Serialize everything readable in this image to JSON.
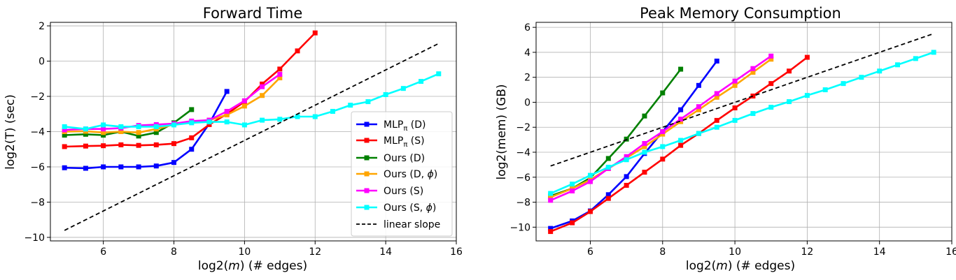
{
  "chart_data": [
    {
      "type": "line",
      "title": "Forward Time",
      "xlabel": "log2(m) (# edges)",
      "xlabel_parts": [
        "log2(",
        "m",
        ") (# edges)"
      ],
      "ylabel": "log2(T) (sec)",
      "xlim": [
        4.5,
        16.0
      ],
      "ylim": [
        -10.2,
        2.2
      ],
      "xticks": [
        6,
        8,
        10,
        12,
        14,
        16
      ],
      "yticks": [
        -10,
        -8,
        -6,
        -4,
        -2,
        0,
        2
      ],
      "ytick_labels": [
        "−10",
        "−8",
        "−6",
        "−4",
        "−2",
        "0",
        "2"
      ],
      "grid": true,
      "legend_position": "lower right",
      "series": [
        {
          "name": "MLP_π (D)",
          "color": "#0000ff",
          "marker": "square",
          "x": [
            4.9,
            5.5,
            6.0,
            6.5,
            7.0,
            7.5,
            8.0,
            8.5,
            9.0,
            9.5
          ],
          "y": [
            -6.05,
            -6.08,
            -6.0,
            -6.0,
            -6.0,
            -5.95,
            -5.75,
            -5.0,
            -3.55,
            -1.72
          ]
        },
        {
          "name": "MLP_π (S)",
          "color": "#ff0000",
          "marker": "square",
          "x": [
            4.9,
            5.5,
            6.0,
            6.5,
            7.0,
            7.5,
            8.0,
            8.5,
            9.0,
            9.5,
            10.0,
            10.5,
            11.0,
            11.5,
            12.0
          ],
          "y": [
            -4.85,
            -4.82,
            -4.8,
            -4.75,
            -4.78,
            -4.75,
            -4.68,
            -4.35,
            -3.6,
            -3.0,
            -2.3,
            -1.3,
            -0.45,
            0.58,
            1.6
          ]
        },
        {
          "name": "Ours (D)",
          "color": "#008000",
          "marker": "square",
          "x": [
            4.9,
            5.5,
            6.0,
            6.5,
            7.0,
            7.5,
            8.0,
            8.5
          ],
          "y": [
            -4.2,
            -4.15,
            -4.2,
            -4.0,
            -4.25,
            -4.05,
            -3.5,
            -2.75
          ]
        },
        {
          "name": "Ours (D, ϕ)",
          "color": "#ffa500",
          "marker": "square",
          "x": [
            4.9,
            5.5,
            6.0,
            6.5,
            7.0,
            7.5,
            8.0,
            8.5,
            9.0,
            9.5,
            10.0,
            10.5,
            11.0
          ],
          "y": [
            -4.0,
            -3.98,
            -4.05,
            -4.0,
            -4.05,
            -3.85,
            -3.6,
            -3.45,
            -3.35,
            -3.05,
            -2.55,
            -1.95,
            -0.95
          ]
        },
        {
          "name": "Ours (S)",
          "color": "#ff00ff",
          "marker": "square",
          "x": [
            4.9,
            5.5,
            6.0,
            6.5,
            7.0,
            7.5,
            8.0,
            8.5,
            9.0,
            9.5,
            10.0,
            10.5,
            11.0
          ],
          "y": [
            -3.9,
            -3.85,
            -3.85,
            -3.8,
            -3.65,
            -3.6,
            -3.55,
            -3.4,
            -3.35,
            -2.85,
            -2.25,
            -1.45,
            -0.75
          ]
        },
        {
          "name": "Ours (S, ϕ)",
          "color": "#00ffff",
          "marker": "square",
          "x": [
            4.9,
            5.5,
            6.0,
            6.5,
            7.0,
            7.5,
            8.0,
            8.5,
            9.0,
            9.5,
            10.0,
            10.5,
            11.0,
            11.5,
            12.0,
            12.5,
            13.0,
            13.5,
            14.0,
            14.5,
            15.0,
            15.5
          ],
          "y": [
            -3.72,
            -3.85,
            -3.62,
            -3.72,
            -3.72,
            -3.72,
            -3.62,
            -3.5,
            -3.45,
            -3.45,
            -3.62,
            -3.35,
            -3.3,
            -3.15,
            -3.15,
            -2.85,
            -2.5,
            -2.3,
            -1.9,
            -1.55,
            -1.15,
            -0.72
          ]
        },
        {
          "name": "linear slope",
          "color": "#000000",
          "style": "dashed",
          "x": [
            4.9,
            15.5
          ],
          "y": [
            -9.6,
            1.0
          ]
        }
      ]
    },
    {
      "type": "line",
      "title": "Peak Memory Consumption",
      "xlabel": "log2(m) (# edges)",
      "xlabel_parts": [
        "log2(",
        "m",
        ") (# edges)"
      ],
      "ylabel": "log2(mem) (GB)",
      "xlim": [
        4.5,
        16.0
      ],
      "ylim": [
        -11.1,
        6.4
      ],
      "xticks": [
        6,
        8,
        10,
        12,
        14,
        16
      ],
      "yticks": [
        -10,
        -8,
        -6,
        -4,
        -2,
        0,
        2,
        4,
        6
      ],
      "ytick_labels": [
        "−10",
        "−8",
        "−6",
        "−4",
        "−2",
        "0",
        "2",
        "4",
        "6"
      ],
      "grid": true,
      "series": [
        {
          "name": "MLP_π (D)",
          "color": "#0000ff",
          "marker": "square",
          "x": [
            4.9,
            5.5,
            6.0,
            6.5,
            7.0,
            7.5,
            8.0,
            8.5,
            9.0,
            9.5
          ],
          "y": [
            -10.1,
            -9.5,
            -8.7,
            -7.4,
            -5.95,
            -4.1,
            -2.35,
            -0.6,
            1.35,
            3.3
          ]
        },
        {
          "name": "MLP_π (S)",
          "color": "#ff0000",
          "marker": "square",
          "x": [
            4.9,
            5.5,
            6.0,
            6.5,
            7.0,
            7.5,
            8.0,
            8.5,
            9.0,
            9.5,
            10.0,
            10.5,
            11.0,
            11.5,
            12.0
          ],
          "y": [
            -10.35,
            -9.65,
            -8.75,
            -7.7,
            -6.65,
            -5.6,
            -4.55,
            -3.45,
            -2.5,
            -1.45,
            -0.45,
            0.5,
            1.5,
            2.5,
            3.6
          ]
        },
        {
          "name": "Ours (D)",
          "color": "#008000",
          "marker": "square",
          "x": [
            4.9,
            5.5,
            6.0,
            6.5,
            7.0,
            7.5,
            8.0,
            8.5
          ],
          "y": [
            -7.5,
            -6.9,
            -6.05,
            -4.5,
            -2.95,
            -1.1,
            0.75,
            2.65
          ]
        },
        {
          "name": "Ours (D, ϕ)",
          "color": "#ffa500",
          "marker": "square",
          "x": [
            4.9,
            5.5,
            6.0,
            6.5,
            7.0,
            7.5,
            8.0,
            8.5,
            9.0,
            9.5,
            10.0,
            10.5,
            11.0
          ],
          "y": [
            -7.6,
            -6.9,
            -6.2,
            -5.3,
            -4.45,
            -3.55,
            -2.55,
            -1.55,
            -0.6,
            0.4,
            1.35,
            2.4,
            3.45
          ]
        },
        {
          "name": "Ours (S)",
          "color": "#ff00ff",
          "marker": "square",
          "x": [
            4.9,
            5.5,
            6.0,
            6.5,
            7.0,
            7.5,
            8.0,
            8.5,
            9.0,
            9.5,
            10.0,
            10.5,
            11.0
          ],
          "y": [
            -7.85,
            -7.1,
            -6.35,
            -5.3,
            -4.35,
            -3.3,
            -2.35,
            -1.35,
            -0.35,
            0.7,
            1.7,
            2.7,
            3.7
          ]
        },
        {
          "name": "Ours (S, ϕ)",
          "color": "#00ffff",
          "marker": "square",
          "x": [
            4.9,
            5.5,
            6.0,
            6.5,
            7.0,
            7.5,
            8.0,
            8.5,
            9.0,
            9.5,
            10.0,
            10.5,
            11.0,
            11.5,
            12.0,
            12.5,
            13.0,
            13.5,
            14.0,
            14.5,
            15.0,
            15.5
          ],
          "y": [
            -7.3,
            -6.55,
            -5.85,
            -5.2,
            -4.6,
            -4.0,
            -3.55,
            -3.05,
            -2.5,
            -2.0,
            -1.45,
            -0.9,
            -0.4,
            0.05,
            0.55,
            1.0,
            1.5,
            2.0,
            2.5,
            3.0,
            3.5,
            4.0
          ]
        },
        {
          "name": "linear slope",
          "color": "#000000",
          "style": "dashed",
          "x": [
            4.9,
            15.5
          ],
          "y": [
            -5.1,
            5.5
          ]
        }
      ]
    }
  ]
}
